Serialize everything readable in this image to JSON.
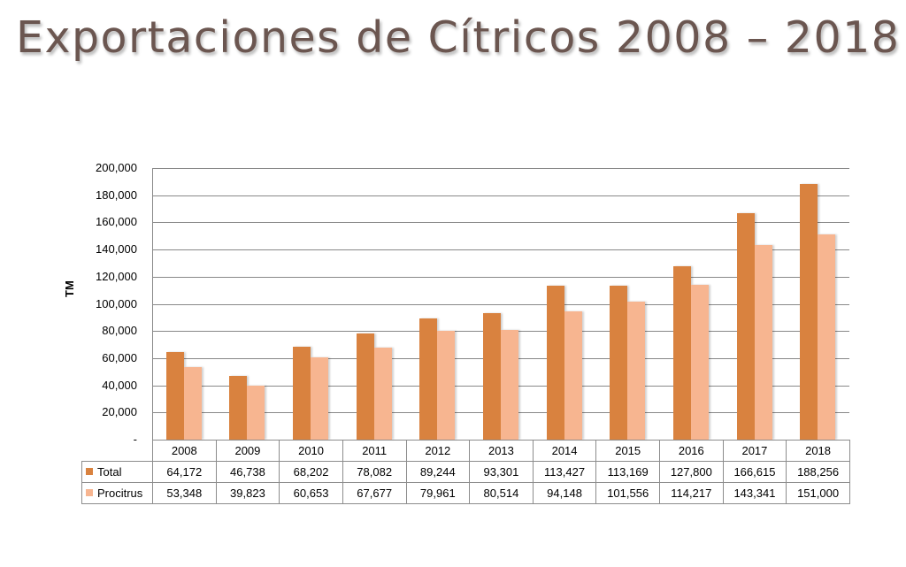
{
  "title": "Exportaciones de Cítricos 2008 – 2018",
  "colors": {
    "total": "#d9823f",
    "procitrus": "#f7b590",
    "grid": "#888888"
  },
  "y_axis": {
    "label": "TM",
    "ticks": [
      "200,000",
      "180,000",
      "160,000",
      "140,000",
      "120,000",
      "100,000",
      "80,000",
      "60,000",
      "40,000",
      "20,000",
      "-"
    ]
  },
  "table": {
    "header": [
      "2008",
      "2009",
      "2010",
      "2011",
      "2012",
      "2013",
      "2014",
      "2015",
      "2016",
      "2017",
      "2018"
    ],
    "rows": [
      {
        "label": "Total",
        "values": [
          "64,172",
          "46,738",
          "68,202",
          "78,082",
          "89,244",
          "93,301",
          "113,427",
          "113,169",
          "127,800",
          "166,615",
          "188,256"
        ]
      },
      {
        "label": "Procitrus",
        "values": [
          "53,348",
          "39,823",
          "60,653",
          "67,677",
          "79,961",
          "80,514",
          "94,148",
          "101,556",
          "114,217",
          "143,341",
          "151,000"
        ]
      }
    ]
  },
  "chart_data": {
    "type": "bar",
    "title": "Exportaciones de Cítricos 2008 – 2018",
    "xlabel": "",
    "ylabel": "TM",
    "ylim": [
      0,
      200000
    ],
    "grid": true,
    "legend_position": "data-table",
    "categories": [
      "2008",
      "2009",
      "2010",
      "2011",
      "2012",
      "2013",
      "2014",
      "2015",
      "2016",
      "2017",
      "2018"
    ],
    "series": [
      {
        "name": "Total",
        "values": [
          64172,
          46738,
          68202,
          78082,
          89244,
          93301,
          113427,
          113169,
          127800,
          166615,
          188256
        ]
      },
      {
        "name": "Procitrus",
        "values": [
          53348,
          39823,
          60653,
          67677,
          79961,
          80514,
          94148,
          101556,
          114217,
          143341,
          151000
        ]
      }
    ]
  }
}
